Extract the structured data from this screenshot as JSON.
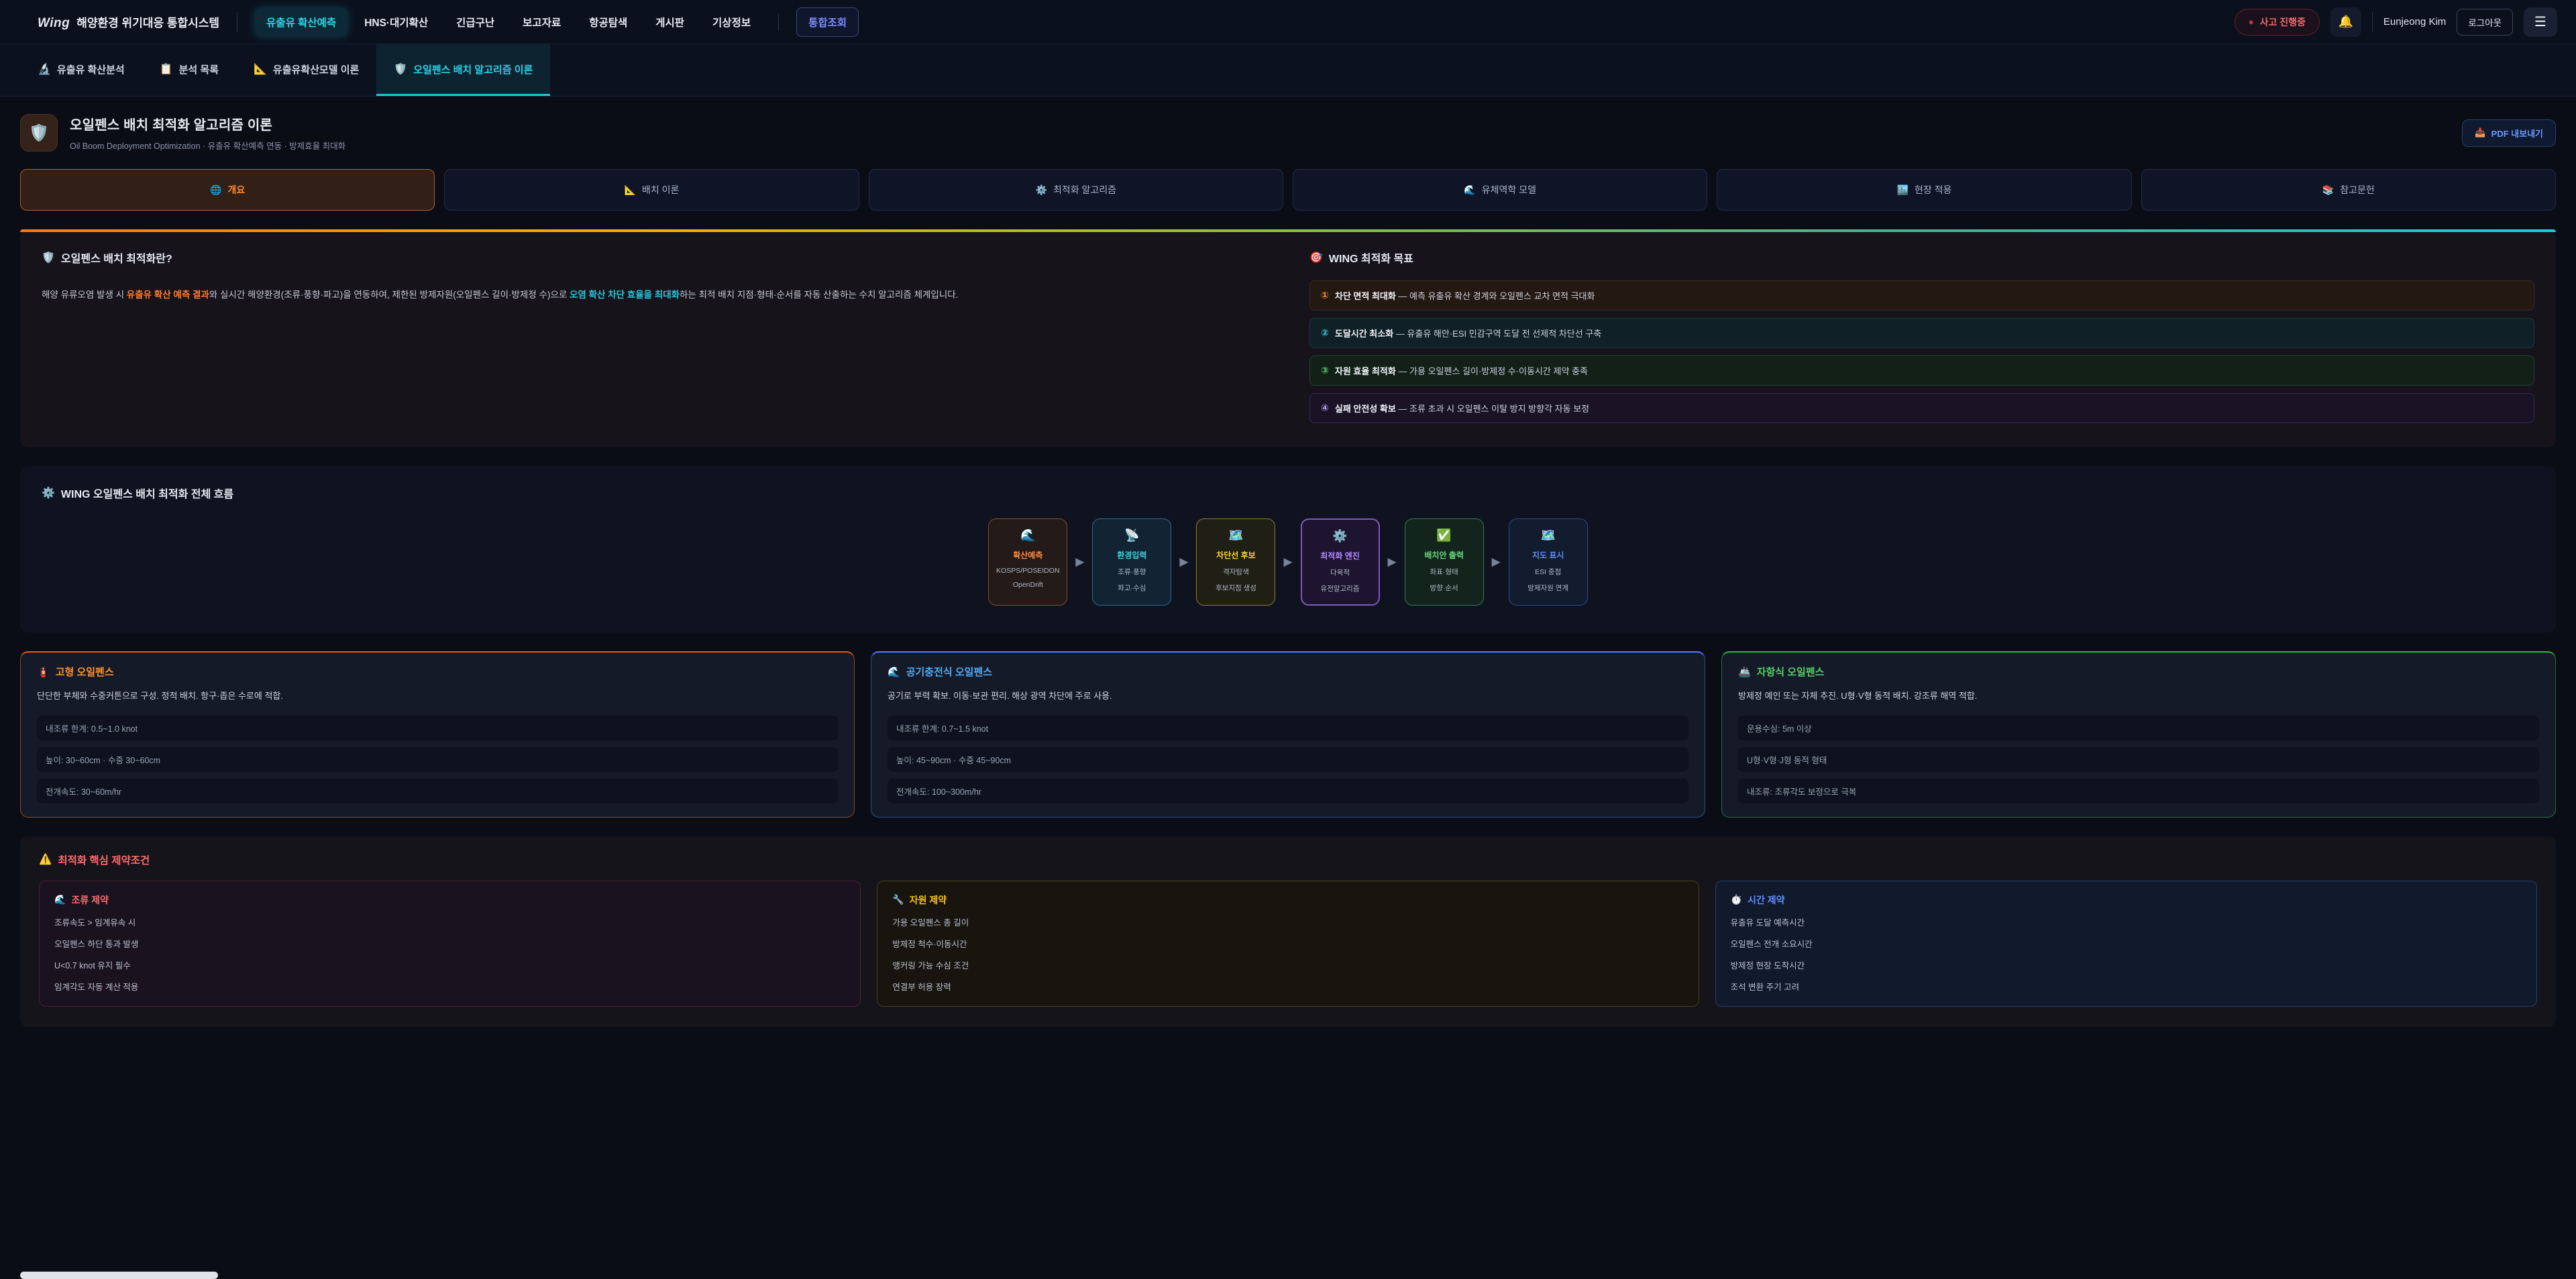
{
  "header": {
    "logo": "Wing",
    "system_name": "해양환경 위기대응 통합시스템",
    "nav": [
      {
        "label": "유출유 확산예측"
      },
      {
        "label": "HNS·대기확산"
      },
      {
        "label": "긴급구난"
      },
      {
        "label": "보고자료"
      },
      {
        "label": "항공탐색"
      },
      {
        "label": "게시판"
      },
      {
        "label": "기상정보"
      },
      {
        "label": "통합조회"
      }
    ],
    "incident_badge": "사고 진행중",
    "badge_dot": "●",
    "bell_icon": "🔔",
    "user_name": "Eunjeong Kim",
    "logout_label": "로그아웃",
    "menu_icon": "☰"
  },
  "subtabs": [
    {
      "icon": "🔬",
      "label": "유출유 확산분석"
    },
    {
      "icon": "📋",
      "label": "분석 목록"
    },
    {
      "icon": "📐",
      "label": "유출유확산모델 이론"
    },
    {
      "icon": "🛡️",
      "label": "오일펜스 배치 알고리즘 이론"
    }
  ],
  "page": {
    "title_icon": "🛡️",
    "title": "오일펜스 배치 최적화 알고리즘 이론",
    "subtitle": "Oil Boom Deployment Optimization · 유출유 확산예측 연동 · 방제효율 최대화",
    "pdf_icon": "📥",
    "pdf_label": "PDF 내보내기"
  },
  "section_tabs": [
    {
      "icon": "🌐",
      "label": "개요"
    },
    {
      "icon": "📐",
      "label": "배치 이론"
    },
    {
      "icon": "⚙️",
      "label": "최적화 알고리즘"
    },
    {
      "icon": "🌊",
      "label": "유체역학 모델"
    },
    {
      "icon": "🏙️",
      "label": "현장 적용"
    },
    {
      "icon": "📚",
      "label": "참고문헌"
    }
  ],
  "overview": {
    "what_icon": "🛡️",
    "what_title": "오일펜스 배치 최적화란?",
    "paragraph": {
      "p1": "해양 유류오염 발생 시 ",
      "em1": "유출유 확산 예측 결과",
      "p2": "와 실시간 해양환경(조류·풍향·파고)을 연동하여, 제한된 방제자원(오일펜스 길이·방제정 수)으로 ",
      "em2": "오염 확산 차단 효율을 최대화",
      "p3": "하는 최적 배치 지점·형태·순서를 자동 산출하는 수치 알고리즘 체계입니다."
    },
    "goals_icon": "🎯",
    "goals_title": "WING 최적화 목표",
    "goals": [
      {
        "num": "①",
        "label": "차단 면적 최대화",
        "desc": " — 예측 유출유 확산 경계와 오일펜스 교차 면적 극대화",
        "accent": "#ff922b"
      },
      {
        "num": "②",
        "label": "도달시간 최소화",
        "desc": " — 유출유 해안·ESI 민감구역 도달 전 선제적 차단선 구축",
        "accent": "#3bc9db"
      },
      {
        "num": "③",
        "label": "자원 효율 최적화",
        "desc": " — 가용 오일펜스 길이·방제정 수·이동시간 제약 충족",
        "accent": "#51cf66"
      },
      {
        "num": "④",
        "label": "실패 안전성 확보",
        "desc": " — 조류 초과 시 오일펜스 이탈 방지 방향각 자동 보정",
        "accent": "#b197fc"
      }
    ]
  },
  "flow": {
    "icon": "⚙️",
    "title": "WING 오일펜스 배치 최적화 전체 흐름",
    "arrow": "▶",
    "steps": [
      {
        "icon": "🌊",
        "title": "확산예측",
        "line1": "KOSPS/POSEIDON",
        "line2": "OpenDrift",
        "accent": "#ff8c42"
      },
      {
        "icon": "📡",
        "title": "환경입력",
        "line1": "조류·풍향",
        "line2": "파고·수심",
        "accent": "#4dd0e1"
      },
      {
        "icon": "🗺️",
        "title": "차단선 후보",
        "line1": "격자탐색",
        "line2": "후보지점 생성",
        "accent": "#ffd43b"
      },
      {
        "icon": "⚙️",
        "title": "최적화 엔진",
        "line1": "다목적",
        "line2": "유전알고리즘",
        "accent": "#b388ff"
      },
      {
        "icon": "✅",
        "title": "배치안 출력",
        "line1": "좌표·형태",
        "line2": "방향·순서",
        "accent": "#69db7c"
      },
      {
        "icon": "🗺️",
        "title": "지도 표시",
        "line1": "ESI 중첩",
        "line2": "방제자원 연계",
        "accent": "#5b8def"
      }
    ]
  },
  "boom_cards": [
    {
      "icon": "🧯",
      "title": "고형 오일펜스",
      "desc": "단단한 부체와 수중커튼으로 구성. 정적 배치. 항구·좁은 수로에 적합.",
      "specs": [
        "내조류 한계: 0.5~1.0 knot",
        "높이: 30~60cm · 수중 30~60cm",
        "전개속도: 30~60m/hr"
      ],
      "accent": "#ff922b"
    },
    {
      "icon": "🌊",
      "title": "공기충전식 오일펜스",
      "desc": "공기로 부력 확보. 이동·보관 편리. 해상 광역 차단에 주로 사용.",
      "specs": [
        "내조류 한계: 0.7~1.5 knot",
        "높이: 45~90cm · 수중 45~90cm",
        "전개속도: 100~300m/hr"
      ],
      "accent": "#4dabf7"
    },
    {
      "icon": "🚢",
      "title": "자항식 오일펜스",
      "desc": "방제정 예인 또는 자체 추진. U형·V형 동적 배치. 강조류 해역 적합.",
      "specs": [
        "운용수심: 5m 이상",
        "U형·V형·J형 동적 형태",
        "내조류: 조류각도 보정으로 극복"
      ],
      "accent": "#51cf66"
    }
  ],
  "constraints": {
    "icon": "⚠️",
    "title": "최적화 핵심 제약조건",
    "cards": [
      {
        "icon": "🌊",
        "title": "조류 제약",
        "items": [
          "조류속도 > 임계유속 시",
          "오일펜스 하단 통과 발생",
          "U<0.7 knot 유지 필수",
          "임계각도 자동 계산 적용"
        ],
        "accent": "#ff6b6b"
      },
      {
        "icon": "🔧",
        "title": "자원 제약",
        "items": [
          "가용 오일펜스 총 길이",
          "방제정 척수·이동시간",
          "앵커링 가능 수심 조건",
          "연결부 허용 장력"
        ],
        "accent": "#fcc419"
      },
      {
        "icon": "⏱️",
        "title": "시간 제약",
        "items": [
          "유출유 도달 예측시간",
          "오일펜스 전개 소요시간",
          "방제정 현장 도착시간",
          "조석 변환 주기 고려"
        ],
        "accent": "#5c8dff"
      }
    ]
  }
}
